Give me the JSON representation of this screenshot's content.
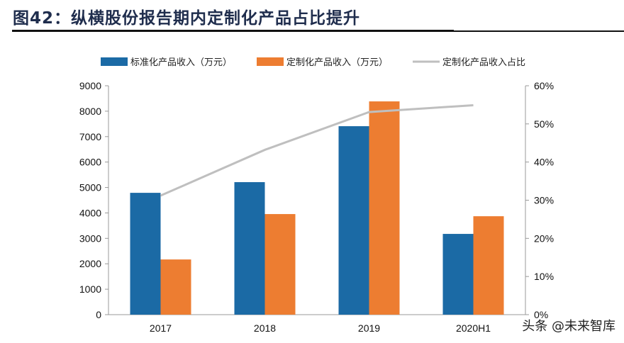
{
  "title": "图42：纵横股份报告期内定制化产品占比提升",
  "watermark": "头条 @未来智库",
  "chart_data": {
    "type": "bar",
    "categories": [
      "2017",
      "2018",
      "2019",
      "2020H1"
    ],
    "series": [
      {
        "name": "标准化产品收入（万元）",
        "type": "bar",
        "axis": "left",
        "color": "#1b6aa5",
        "values": [
          4790,
          5210,
          7410,
          3175
        ]
      },
      {
        "name": "定制化产品收入（万元）",
        "type": "bar",
        "axis": "left",
        "color": "#ed7d31",
        "values": [
          2170,
          3955,
          8385,
          3870
        ]
      },
      {
        "name": "定制化产品收入占比",
        "type": "line",
        "axis": "right",
        "color": "#bfbfbf",
        "values": [
          31.2,
          43.2,
          53.1,
          54.9
        ]
      }
    ],
    "ylim": [
      0,
      9000
    ],
    "yticks": [
      "0",
      "1000",
      "2000",
      "3000",
      "4000",
      "5000",
      "6000",
      "7000",
      "8000",
      "9000"
    ],
    "y2lim": [
      0,
      60
    ],
    "y2ticks": [
      "0%",
      "10%",
      "20%",
      "30%",
      "40%",
      "50%",
      "60%"
    ],
    "legend": "top",
    "grid": false
  }
}
